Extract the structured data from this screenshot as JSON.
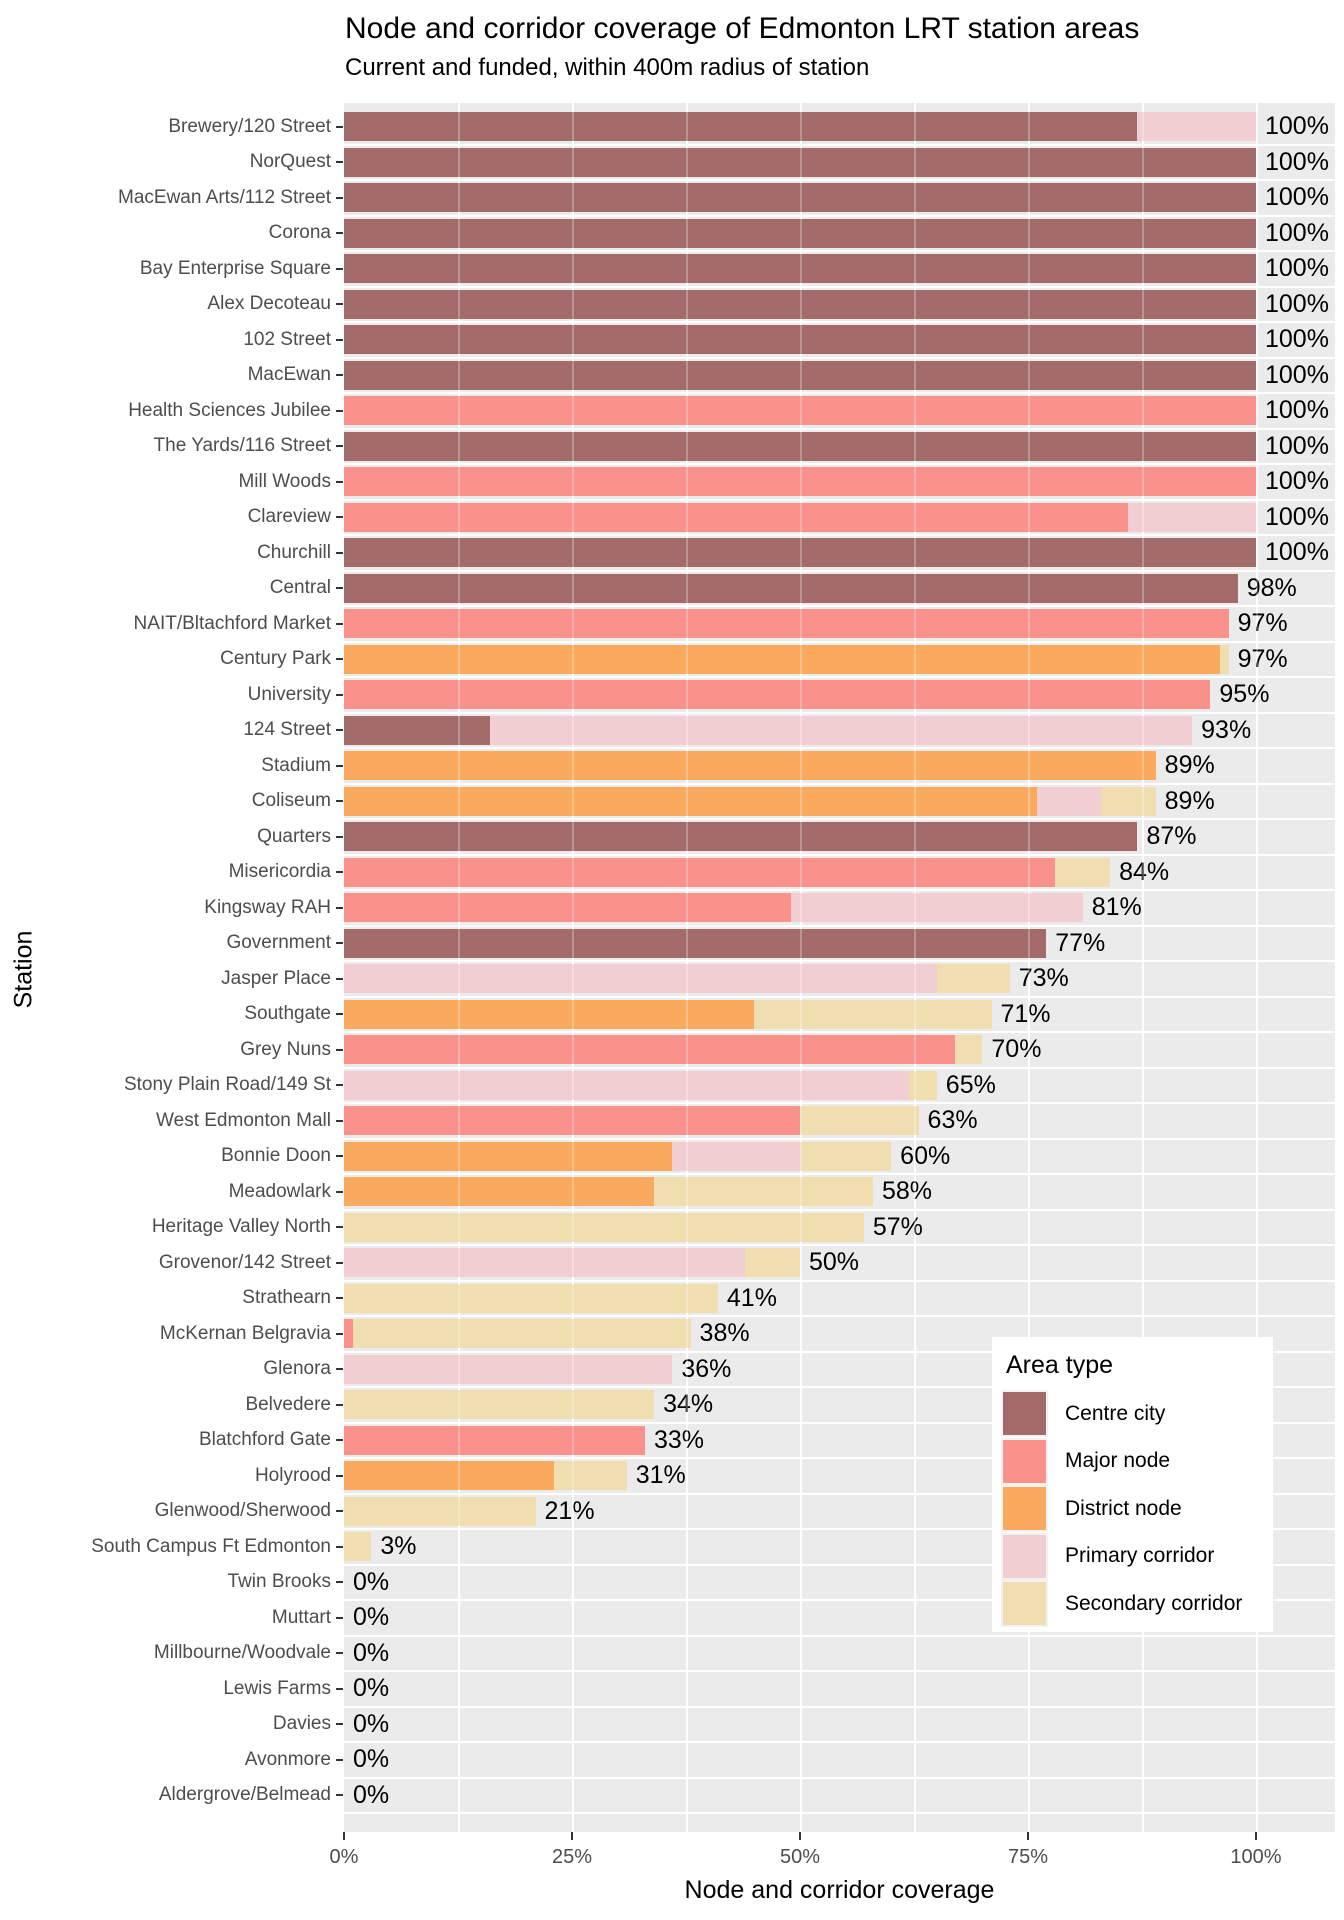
{
  "title": "Node and corridor coverage of Edmonton LRT station areas",
  "subtitle": "Current and funded, within 400m radius of station",
  "chart_data": {
    "type": "bar",
    "orientation": "horizontal",
    "stacked": true,
    "title": "Node and corridor coverage of Edmonton LRT station areas",
    "subtitle": "Current and funded, within 400m radius of station",
    "xlabel": "Node and corridor coverage",
    "ylabel": "Station",
    "xlim": [
      0,
      100
    ],
    "x_ticks": [
      {
        "label": "0%",
        "value": 0
      },
      {
        "label": "25%",
        "value": 25
      },
      {
        "label": "50%",
        "value": 50
      },
      {
        "label": "75%",
        "value": 75
      },
      {
        "label": "100%",
        "value": 100
      }
    ],
    "grid": "white-on-grey",
    "legend": {
      "title": "Area type",
      "position": "inside-bottom-right"
    },
    "area_types": [
      {
        "key": "centre_city",
        "label": "Centre city",
        "color": "#A36A6A"
      },
      {
        "key": "major_node",
        "label": "Major node",
        "color": "#FA918A"
      },
      {
        "key": "district_node",
        "label": "District node",
        "color": "#FAAA5F"
      },
      {
        "key": "primary_corridor",
        "label": "Primary corridor",
        "color": "#F1CED2"
      },
      {
        "key": "secondary_corridor",
        "label": "Secondary corridor",
        "color": "#F0DEB0"
      }
    ],
    "stations": [
      {
        "name": "Brewery/120 Street",
        "total_label": "100%",
        "segments": [
          {
            "type": "centre_city",
            "value": 87
          },
          {
            "type": "primary_corridor",
            "value": 13
          }
        ]
      },
      {
        "name": "NorQuest",
        "total_label": "100%",
        "segments": [
          {
            "type": "centre_city",
            "value": 100
          }
        ]
      },
      {
        "name": "MacEwan Arts/112 Street",
        "total_label": "100%",
        "segments": [
          {
            "type": "centre_city",
            "value": 100
          }
        ]
      },
      {
        "name": "Corona",
        "total_label": "100%",
        "segments": [
          {
            "type": "centre_city",
            "value": 100
          }
        ]
      },
      {
        "name": "Bay Enterprise Square",
        "total_label": "100%",
        "segments": [
          {
            "type": "centre_city",
            "value": 100
          }
        ]
      },
      {
        "name": "Alex Decoteau",
        "total_label": "100%",
        "segments": [
          {
            "type": "centre_city",
            "value": 100
          }
        ]
      },
      {
        "name": "102 Street",
        "total_label": "100%",
        "segments": [
          {
            "type": "centre_city",
            "value": 100
          }
        ]
      },
      {
        "name": "MacEwan",
        "total_label": "100%",
        "segments": [
          {
            "type": "centre_city",
            "value": 100
          }
        ]
      },
      {
        "name": "Health Sciences Jubilee",
        "total_label": "100%",
        "segments": [
          {
            "type": "major_node",
            "value": 100
          }
        ]
      },
      {
        "name": "The Yards/116 Street",
        "total_label": "100%",
        "segments": [
          {
            "type": "centre_city",
            "value": 100
          }
        ]
      },
      {
        "name": "Mill Woods",
        "total_label": "100%",
        "segments": [
          {
            "type": "major_node",
            "value": 100
          }
        ]
      },
      {
        "name": "Clareview",
        "total_label": "100%",
        "segments": [
          {
            "type": "major_node",
            "value": 86
          },
          {
            "type": "primary_corridor",
            "value": 14
          }
        ]
      },
      {
        "name": "Churchill",
        "total_label": "100%",
        "segments": [
          {
            "type": "centre_city",
            "value": 100
          }
        ]
      },
      {
        "name": "Central",
        "total_label": "98%",
        "segments": [
          {
            "type": "centre_city",
            "value": 98
          }
        ]
      },
      {
        "name": "NAIT/Bltachford Market",
        "total_label": "97%",
        "segments": [
          {
            "type": "major_node",
            "value": 97
          }
        ]
      },
      {
        "name": "Century Park",
        "total_label": "97%",
        "segments": [
          {
            "type": "district_node",
            "value": 96
          },
          {
            "type": "secondary_corridor",
            "value": 1
          }
        ]
      },
      {
        "name": "University",
        "total_label": "95%",
        "segments": [
          {
            "type": "major_node",
            "value": 95
          }
        ]
      },
      {
        "name": "124 Street",
        "total_label": "93%",
        "segments": [
          {
            "type": "centre_city",
            "value": 16
          },
          {
            "type": "primary_corridor",
            "value": 77
          }
        ]
      },
      {
        "name": "Stadium",
        "total_label": "89%",
        "segments": [
          {
            "type": "district_node",
            "value": 89
          }
        ]
      },
      {
        "name": "Coliseum",
        "total_label": "89%",
        "segments": [
          {
            "type": "district_node",
            "value": 76
          },
          {
            "type": "primary_corridor",
            "value": 7
          },
          {
            "type": "secondary_corridor",
            "value": 6
          }
        ]
      },
      {
        "name": "Quarters",
        "total_label": "87%",
        "segments": [
          {
            "type": "centre_city",
            "value": 87
          }
        ]
      },
      {
        "name": "Misericordia",
        "total_label": "84%",
        "segments": [
          {
            "type": "major_node",
            "value": 78
          },
          {
            "type": "secondary_corridor",
            "value": 6
          }
        ]
      },
      {
        "name": "Kingsway RAH",
        "total_label": "81%",
        "segments": [
          {
            "type": "major_node",
            "value": 49
          },
          {
            "type": "primary_corridor",
            "value": 32
          }
        ]
      },
      {
        "name": "Government",
        "total_label": "77%",
        "segments": [
          {
            "type": "centre_city",
            "value": 77
          }
        ]
      },
      {
        "name": "Jasper Place",
        "total_label": "73%",
        "segments": [
          {
            "type": "primary_corridor",
            "value": 65
          },
          {
            "type": "secondary_corridor",
            "value": 8
          }
        ]
      },
      {
        "name": "Southgate",
        "total_label": "71%",
        "segments": [
          {
            "type": "district_node",
            "value": 45
          },
          {
            "type": "secondary_corridor",
            "value": 26
          }
        ]
      },
      {
        "name": "Grey Nuns",
        "total_label": "70%",
        "segments": [
          {
            "type": "major_node",
            "value": 67
          },
          {
            "type": "secondary_corridor",
            "value": 3
          }
        ]
      },
      {
        "name": "Stony Plain Road/149 St",
        "total_label": "65%",
        "segments": [
          {
            "type": "primary_corridor",
            "value": 62
          },
          {
            "type": "secondary_corridor",
            "value": 3
          }
        ]
      },
      {
        "name": "West Edmonton Mall",
        "total_label": "63%",
        "segments": [
          {
            "type": "major_node",
            "value": 50
          },
          {
            "type": "secondary_corridor",
            "value": 13
          }
        ]
      },
      {
        "name": "Bonnie Doon",
        "total_label": "60%",
        "segments": [
          {
            "type": "district_node",
            "value": 36
          },
          {
            "type": "primary_corridor",
            "value": 14
          },
          {
            "type": "secondary_corridor",
            "value": 10
          }
        ]
      },
      {
        "name": "Meadowlark",
        "total_label": "58%",
        "segments": [
          {
            "type": "district_node",
            "value": 34
          },
          {
            "type": "secondary_corridor",
            "value": 24
          }
        ]
      },
      {
        "name": "Heritage Valley North",
        "total_label": "57%",
        "segments": [
          {
            "type": "secondary_corridor",
            "value": 57
          }
        ]
      },
      {
        "name": "Grovenor/142 Street",
        "total_label": "50%",
        "segments": [
          {
            "type": "primary_corridor",
            "value": 44
          },
          {
            "type": "secondary_corridor",
            "value": 6
          }
        ]
      },
      {
        "name": "Strathearn",
        "total_label": "41%",
        "segments": [
          {
            "type": "secondary_corridor",
            "value": 41
          }
        ]
      },
      {
        "name": "McKernan Belgravia",
        "total_label": "38%",
        "segments": [
          {
            "type": "major_node",
            "value": 1
          },
          {
            "type": "secondary_corridor",
            "value": 37
          }
        ]
      },
      {
        "name": "Glenora",
        "total_label": "36%",
        "segments": [
          {
            "type": "primary_corridor",
            "value": 36
          }
        ]
      },
      {
        "name": "Belvedere",
        "total_label": "34%",
        "segments": [
          {
            "type": "secondary_corridor",
            "value": 34
          }
        ]
      },
      {
        "name": "Blatchford Gate",
        "total_label": "33%",
        "segments": [
          {
            "type": "major_node",
            "value": 33
          }
        ]
      },
      {
        "name": "Holyrood",
        "total_label": "31%",
        "segments": [
          {
            "type": "district_node",
            "value": 23
          },
          {
            "type": "secondary_corridor",
            "value": 8
          }
        ]
      },
      {
        "name": "Glenwood/Sherwood",
        "total_label": "21%",
        "segments": [
          {
            "type": "secondary_corridor",
            "value": 21
          }
        ]
      },
      {
        "name": "South Campus Ft Edmonton",
        "total_label": "3%",
        "segments": [
          {
            "type": "secondary_corridor",
            "value": 3
          }
        ]
      },
      {
        "name": "Twin Brooks",
        "total_label": "0%",
        "segments": []
      },
      {
        "name": "Muttart",
        "total_label": "0%",
        "segments": []
      },
      {
        "name": "Millbourne/Woodvale",
        "total_label": "0%",
        "segments": []
      },
      {
        "name": "Lewis Farms",
        "total_label": "0%",
        "segments": []
      },
      {
        "name": "Davies",
        "total_label": "0%",
        "segments": []
      },
      {
        "name": "Avonmore",
        "total_label": "0%",
        "segments": []
      },
      {
        "name": "Aldergrove/Belmead",
        "total_label": "0%",
        "segments": []
      }
    ]
  },
  "colors": {
    "panel_background": "#EBEBEB",
    "gridline": "#FFFFFF",
    "axis_text": "#4D4D4D",
    "tick_mark": "#333333",
    "label_text": "#000000"
  }
}
